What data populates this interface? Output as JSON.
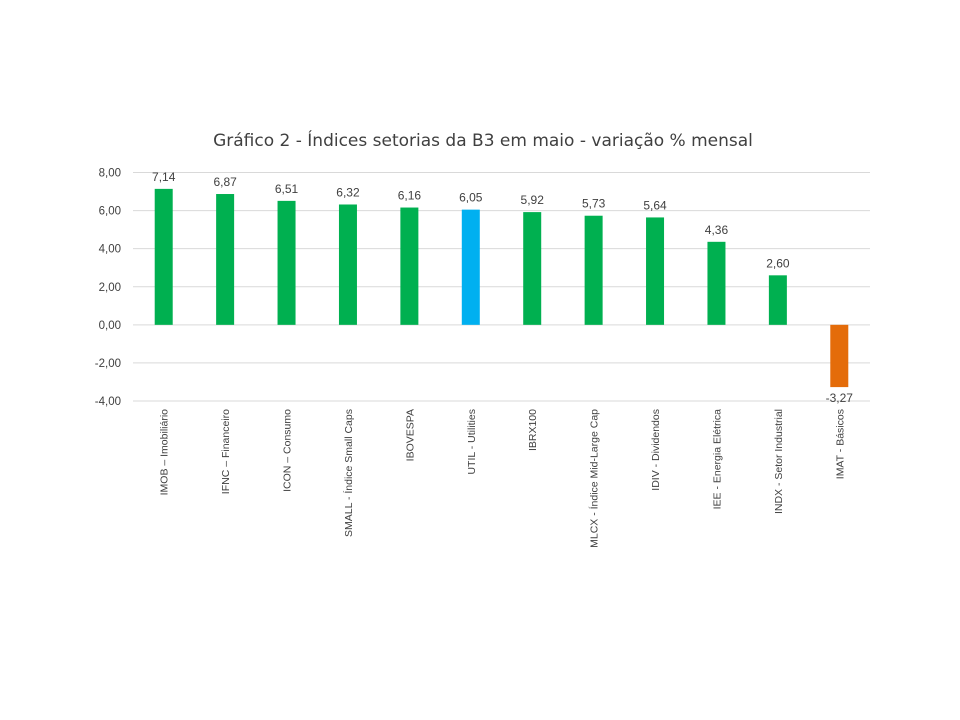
{
  "chart_data": {
    "type": "bar",
    "title": "Gráfico 2 - Índices setorias da B3 em maio - variação % mensal",
    "xlabel": "",
    "ylabel": "",
    "ylim": [
      -4,
      8
    ],
    "yticks": [
      "8,00",
      "6,00",
      "4,00",
      "2,00",
      "0,00",
      "-2,00",
      "-4,00"
    ],
    "ytick_values": [
      8,
      6,
      4,
      2,
      0,
      -2,
      -4
    ],
    "grid": true,
    "legend": "none",
    "categories": [
      "IMOB – Imobiliário",
      "IFNC – Financeiro",
      "ICON – Consumo",
      "SMALL - Índice Small Caps",
      "IBOVESPA",
      "UTIL - Utilities",
      "IBRX100",
      "MLCX - Índice Mid-Large Cap",
      "IDIV - Dividendos",
      "IEE - Energia Elétrica",
      "INDX - Setor Industrial",
      "IMAT - Básicos"
    ],
    "values": [
      7.14,
      6.87,
      6.51,
      6.32,
      6.16,
      6.05,
      5.92,
      5.73,
      5.64,
      4.36,
      2.6,
      -3.27
    ],
    "value_labels": [
      "7,14",
      "6,87",
      "6,51",
      "6,32",
      "6,16",
      "6,05",
      "5,92",
      "5,73",
      "5,64",
      "4,36",
      "2,60",
      "-3,27"
    ],
    "colors": [
      "#00b050",
      "#00b050",
      "#00b050",
      "#00b050",
      "#00b050",
      "#00b0f0",
      "#00b050",
      "#00b050",
      "#00b050",
      "#00b050",
      "#00b050",
      "#e46c0a"
    ]
  }
}
